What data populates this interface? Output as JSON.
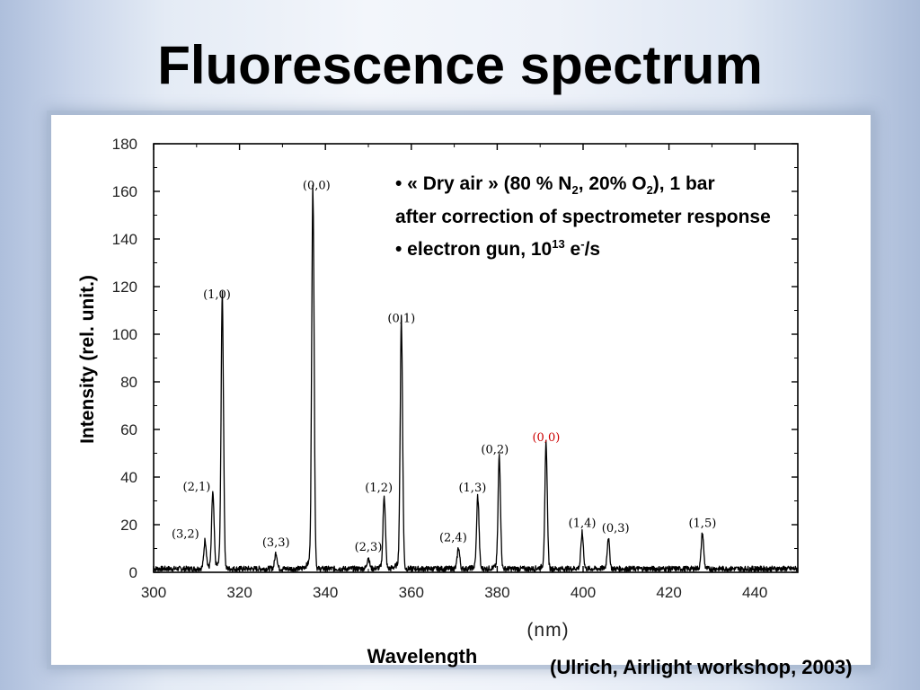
{
  "slide": {
    "title": "Fluorescence spectrum",
    "citation": "(Ulrich, Airlight workshop, 2003)"
  },
  "annotation": {
    "line1_pre": "• « Dry air » (80 % N",
    "line1_sub1": "2",
    "line1_mid": ", 20% O",
    "line1_sub2": "2",
    "line1_post": "), 1 bar",
    "line2": "after correction of spectrometer response",
    "line3_pre": "• electron gun, 10",
    "line3_sup1": "13",
    "line3_mid": " e",
    "line3_sup2": "-",
    "line3_post": "/s"
  },
  "chart_data": {
    "type": "line",
    "title": "",
    "xlabel": "Wavelength",
    "xunit": "(nm)",
    "ylabel": "Intensity (rel. unit.)",
    "xlim": [
      300,
      450
    ],
    "ylim": [
      0,
      180
    ],
    "xticks": [
      300,
      320,
      340,
      360,
      380,
      400,
      420,
      440
    ],
    "yticks": [
      0,
      20,
      40,
      60,
      80,
      100,
      120,
      140,
      160,
      180
    ],
    "grid": false,
    "line_color": "#000000",
    "highlight_color": "#cc0000",
    "peaks": [
      {
        "label": "(3,2)",
        "x": 312.0,
        "y": 13
      },
      {
        "label": "(2,1)",
        "x": 313.8,
        "y": 32
      },
      {
        "label": "(1,0)",
        "x": 316.0,
        "y": 112
      },
      {
        "label": "(3,3)",
        "x": 328.5,
        "y": 8
      },
      {
        "label": "(0,0)",
        "x": 337.1,
        "y": 158
      },
      {
        "label": "(2,3)",
        "x": 350.0,
        "y": 6
      },
      {
        "label": "(1,2)",
        "x": 353.7,
        "y": 31
      },
      {
        "label": "(0,1)",
        "x": 357.7,
        "y": 102
      },
      {
        "label": "(2,4)",
        "x": 371.0,
        "y": 10
      },
      {
        "label": "(1,3)",
        "x": 375.5,
        "y": 31
      },
      {
        "label": "(0,2)",
        "x": 380.5,
        "y": 47
      },
      {
        "label": "(0,0)",
        "x": 391.4,
        "y": 52,
        "highlight": true
      },
      {
        "label": "(1,4)",
        "x": 399.8,
        "y": 16
      },
      {
        "label": "(0,3)",
        "x": 405.9,
        "y": 14
      },
      {
        "label": "(1,5)",
        "x": 427.8,
        "y": 16
      }
    ]
  }
}
